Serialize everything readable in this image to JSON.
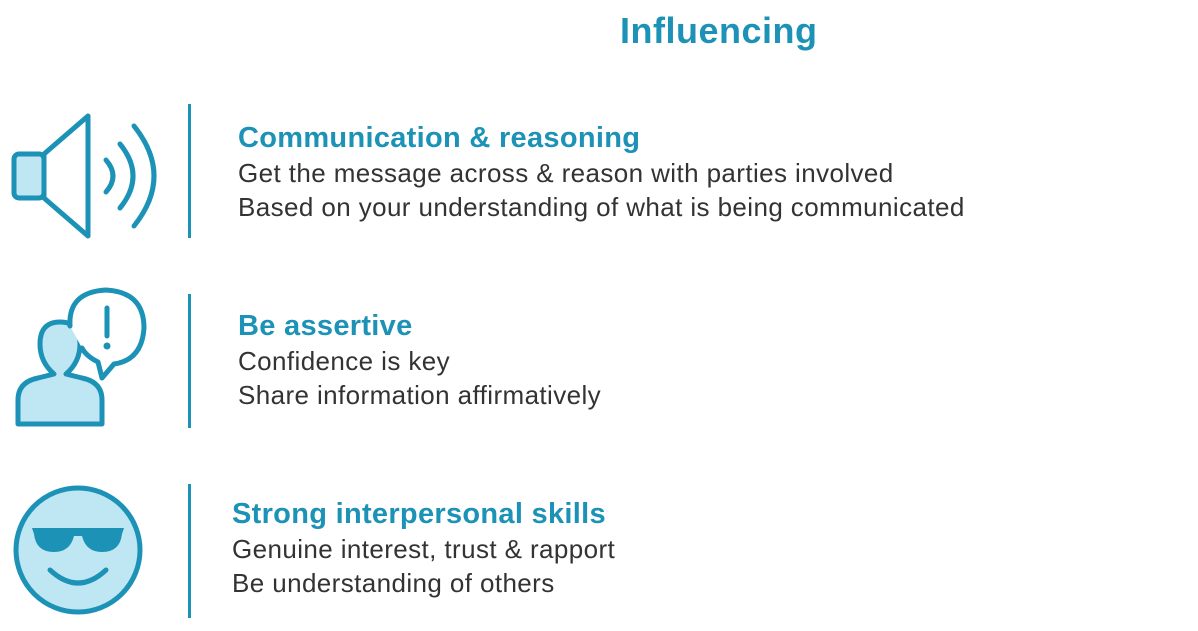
{
  "title": "Influencing",
  "colors": {
    "accent": "#1b92b6",
    "icon_fill": "#bfe6f3",
    "text": "#333333"
  },
  "items": [
    {
      "icon": "speaker-icon",
      "heading": "Communication & reasoning",
      "lines": [
        "Get the message across & reason with parties involved",
        "Based on your understanding of what is being communicated"
      ]
    },
    {
      "icon": "person-alert-icon",
      "heading": "Be assertive",
      "lines": [
        "Confidence is key",
        "Share information affirmatively"
      ]
    },
    {
      "icon": "smiley-sunglasses-icon",
      "heading": "Strong interpersonal skills",
      "lines": [
        "Genuine interest, trust & rapport",
        "Be understanding of others"
      ]
    }
  ]
}
